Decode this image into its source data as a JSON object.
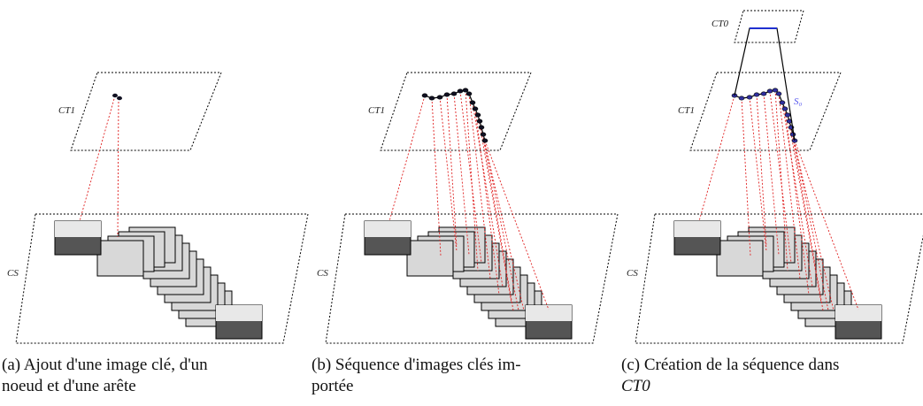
{
  "panels": [
    {
      "labels": {
        "top": "CT1",
        "base": "CS"
      },
      "caption": [
        "(a) Ajout d'une image clé, d'un",
        "noeud et d'une arête"
      ]
    },
    {
      "labels": {
        "top": "CT1",
        "base": "CS"
      },
      "caption": [
        "(b) Séquence d'images clés im-",
        "portée"
      ]
    },
    {
      "labels": {
        "upper": "CT0",
        "top": "CT1",
        "base": "CS",
        "sequence": "S₀"
      },
      "caption": [
        "(c) Création de la séquence dans",
        "CT0"
      ]
    }
  ]
}
